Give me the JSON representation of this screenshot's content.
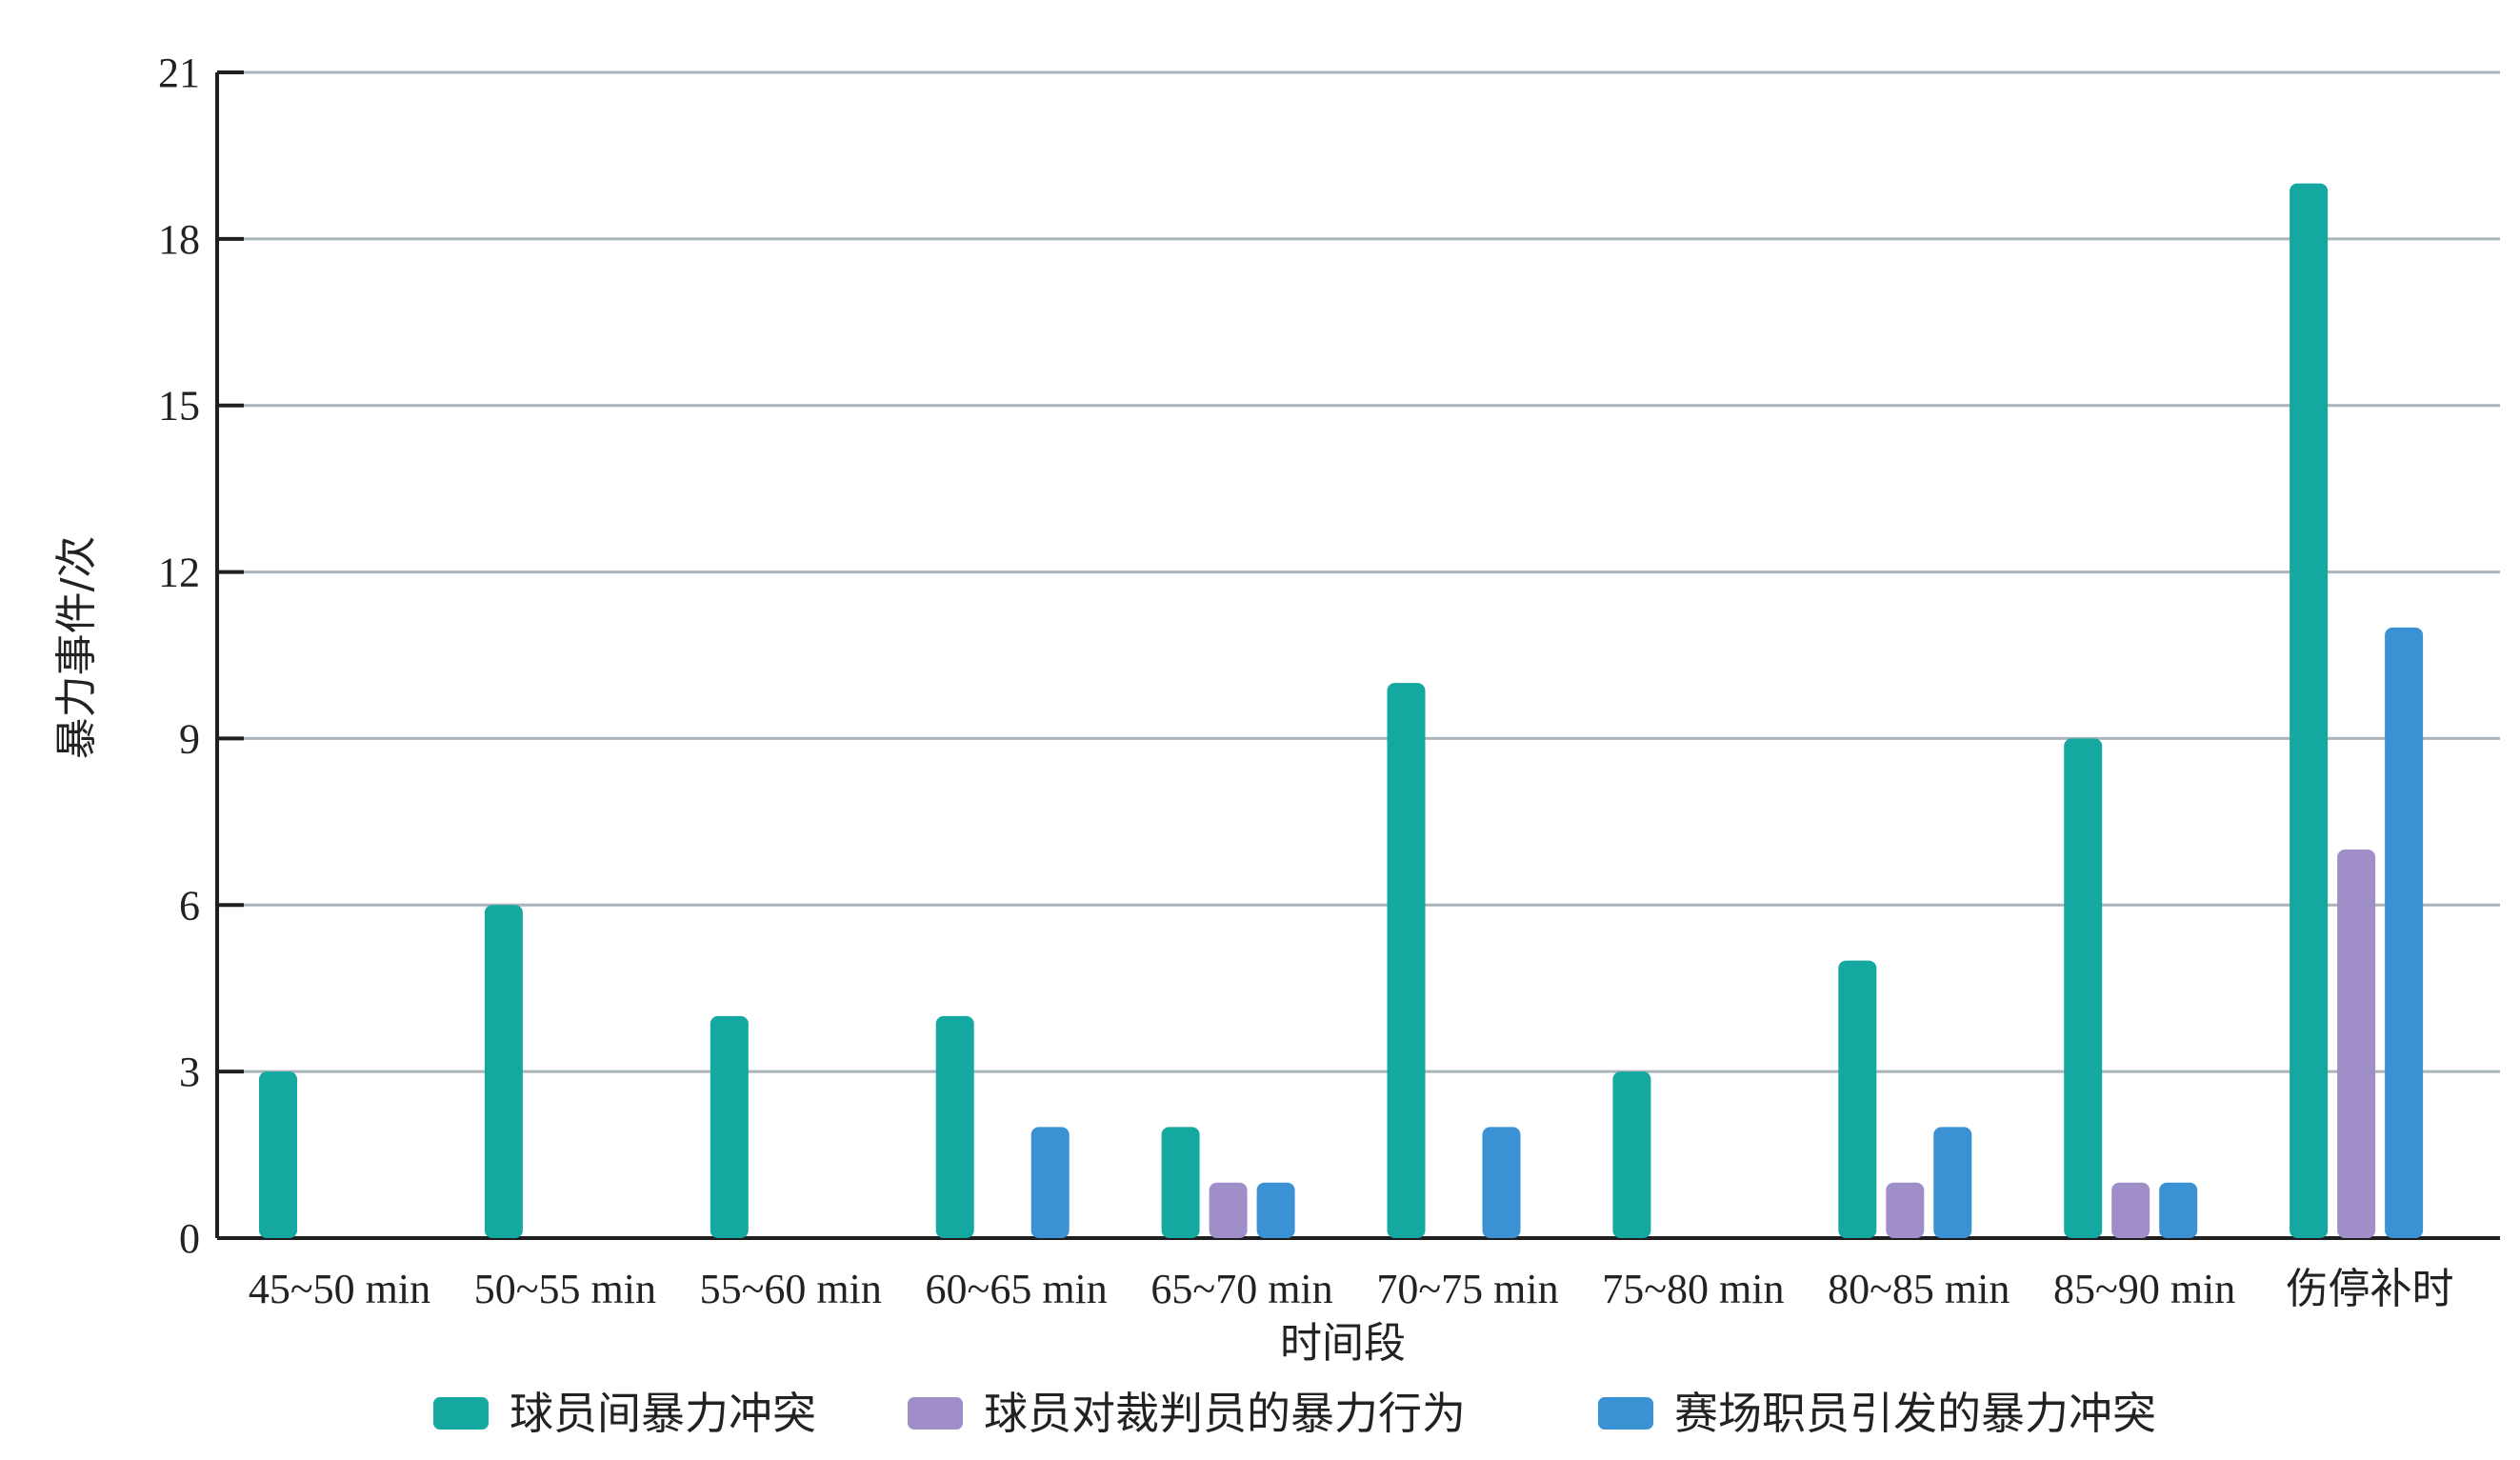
{
  "chart_data": {
    "type": "bar",
    "title": "",
    "xlabel": "时间段",
    "ylabel": "暴力事件/次",
    "ylim": [
      0,
      21
    ],
    "yticks": [
      0,
      3,
      6,
      9,
      12,
      15,
      18,
      21
    ],
    "grid": true,
    "legend_position": "bottom",
    "categories": [
      "45~50 min",
      "50~55 min",
      "55~60 min",
      "60~65 min",
      "65~70 min",
      "70~75 min",
      "75~80 min",
      "80~85 min",
      "85~90 min",
      "伤停补时"
    ],
    "series": [
      {
        "name": "球员间暴力冲突",
        "color": "#14a8a0",
        "values": [
          3,
          6,
          4,
          4,
          2,
          10,
          3,
          5,
          9,
          19
        ]
      },
      {
        "name": "球员对裁判员的暴力行为",
        "color": "#a08ec9",
        "values": [
          0,
          0,
          0,
          0,
          1,
          0,
          0,
          1,
          1,
          7
        ]
      },
      {
        "name": "赛场职员引发的暴力冲突",
        "color": "#3a92d4",
        "values": [
          0,
          0,
          0,
          2,
          1,
          2,
          0,
          2,
          1,
          11
        ]
      }
    ]
  }
}
